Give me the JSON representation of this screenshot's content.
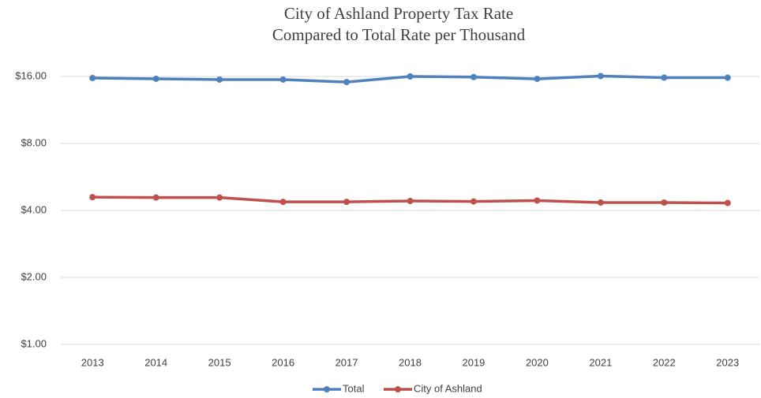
{
  "chart_data": {
    "type": "line",
    "title": [
      "City of Ashland Property Tax Rate",
      "Compared to Total Rate per Thousand"
    ],
    "categories": [
      "2013",
      "2014",
      "2015",
      "2016",
      "2017",
      "2018",
      "2019",
      "2020",
      "2021",
      "2022",
      "2023"
    ],
    "series": [
      {
        "name": "Total",
        "color": "#4f81bd",
        "values": [
          15.74,
          15.62,
          15.49,
          15.49,
          15.1,
          16.0,
          15.9,
          15.6,
          16.07,
          15.8,
          15.8
        ]
      },
      {
        "name": "City of Ashland",
        "color": "#c0504d",
        "values": [
          4.59,
          4.57,
          4.57,
          4.37,
          4.37,
          4.41,
          4.39,
          4.43,
          4.34,
          4.34,
          4.32
        ]
      }
    ],
    "ylim": [
      1,
      16
    ],
    "log_scale": true,
    "yticks": [
      {
        "value": 1,
        "label": "$1.00"
      },
      {
        "value": 2,
        "label": "$2.00"
      },
      {
        "value": 4,
        "label": "$4.00"
      },
      {
        "value": 8,
        "label": "$8.00"
      },
      {
        "value": 16,
        "label": "$16.00"
      }
    ],
    "grid": true,
    "legend": "bottom"
  }
}
